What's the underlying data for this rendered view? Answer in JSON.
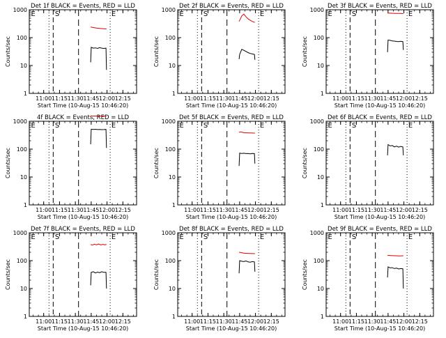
{
  "figure": {
    "xlabel": "Start Time (10-Aug-15 10:46:20)",
    "ylabel": "Counts/sec",
    "x_ticks": [
      "11:00",
      "11:15",
      "11:30",
      "11:45",
      "12:00",
      "12:15"
    ],
    "y_ticks": [
      "1",
      "10",
      "100",
      "1000"
    ],
    "marker_labels": [
      "E",
      "S",
      "E"
    ],
    "colors": {
      "events": "#000000",
      "lld": "#e00000",
      "axes": "#000000"
    }
  },
  "chart_data": [
    {
      "type": "line",
      "title": "Det 1f BLACK = Events, RED = LLD",
      "xlabel": "Start Time (10-Aug-15 10:46:20)",
      "ylabel": "Counts/sec",
      "ylim": [
        1,
        1000
      ],
      "yscale": "log",
      "grid": false,
      "series": [
        {
          "name": "Events",
          "color": "#000000",
          "x": [
            "11:44:30",
            "11:45",
            "11:47",
            "11:49",
            "11:51",
            "11:53",
            "11:55",
            "11:57",
            "11:59",
            "11:59:30"
          ],
          "values": [
            13,
            45,
            42,
            43,
            41,
            44,
            42,
            41,
            42,
            7
          ]
        },
        {
          "name": "LLD",
          "color": "#e00000",
          "x": [
            "11:44:30",
            "11:47",
            "11:50",
            "11:53",
            "11:56",
            "11:59:30"
          ],
          "values": [
            240,
            230,
            220,
            215,
            210,
            205
          ]
        }
      ]
    },
    {
      "type": "line",
      "title": "Det 2f BLACK = Events, RED = LLD",
      "xlabel": "Start Time (10-Aug-15 10:46:20)",
      "ylabel": "Counts/sec",
      "ylim": [
        1,
        1000
      ],
      "yscale": "log",
      "grid": false,
      "series": [
        {
          "name": "Events",
          "color": "#000000",
          "x": [
            "11:44:30",
            "11:45",
            "11:47",
            "11:49",
            "11:51",
            "11:53",
            "11:55",
            "11:57",
            "11:59",
            "11:59:30"
          ],
          "values": [
            17,
            25,
            38,
            35,
            32,
            29,
            27,
            26,
            25,
            16
          ]
        },
        {
          "name": "LLD",
          "color": "#e00000",
          "x": [
            "11:44:30",
            "11:47",
            "11:49",
            "11:51",
            "11:53",
            "11:55",
            "11:57",
            "11:59:30"
          ],
          "values": [
            380,
            600,
            700,
            560,
            470,
            420,
            380,
            350
          ]
        }
      ]
    },
    {
      "type": "line",
      "title": "Det 3f BLACK = Events, RED = LLD",
      "xlabel": "Start Time (10-Aug-15 10:46:20)",
      "ylabel": "Counts/sec",
      "ylim": [
        1,
        1000
      ],
      "yscale": "log",
      "grid": false,
      "series": [
        {
          "name": "Events",
          "color": "#000000",
          "x": [
            "11:44:30",
            "11:45",
            "11:47",
            "11:49",
            "11:51",
            "11:53",
            "11:55",
            "11:57",
            "11:59",
            "11:59:30"
          ],
          "values": [
            30,
            82,
            80,
            76,
            75,
            73,
            72,
            74,
            72,
            36
          ]
        },
        {
          "name": "LLD",
          "color": "#e00000",
          "x": [
            "11:44:30",
            "11:48",
            "11:52",
            "11:56",
            "11:59:30"
          ],
          "values": [
            760,
            750,
            740,
            735,
            730
          ]
        }
      ]
    },
    {
      "type": "line",
      "title": "4f BLACK = Events, RED = LLD",
      "xlabel": "Start Time (10-Aug-15 10:46:20)",
      "ylabel": "Counts/sec",
      "ylim": [
        1,
        1000
      ],
      "yscale": "log",
      "grid": false,
      "series": [
        {
          "name": "Events",
          "color": "#000000",
          "x": [
            "11:44:30",
            "11:45",
            "11:47",
            "11:49",
            "11:51",
            "11:53",
            "11:55",
            "11:57",
            "11:59",
            "11:59:30"
          ],
          "values": [
            150,
            520,
            510,
            515,
            505,
            510,
            500,
            505,
            510,
            110
          ]
        },
        {
          "name": "LLD",
          "color": "#e00000",
          "x": [
            "11:44:30",
            "11:48",
            "11:52",
            "11:56",
            "11:59:30"
          ],
          "values": [
            1550,
            1540,
            1540,
            1530,
            1530
          ]
        }
      ]
    },
    {
      "type": "line",
      "title": "Det 5f BLACK = Events, RED = LLD",
      "xlabel": "Start Time (10-Aug-15 10:46:20)",
      "ylabel": "Counts/sec",
      "ylim": [
        1,
        1000
      ],
      "yscale": "log",
      "grid": false,
      "series": [
        {
          "name": "Events",
          "color": "#000000",
          "x": [
            "11:44:30",
            "11:45",
            "11:47",
            "11:49",
            "11:51",
            "11:53",
            "11:55",
            "11:57",
            "11:59",
            "11:59:30"
          ],
          "values": [
            25,
            72,
            70,
            71,
            69,
            70,
            68,
            70,
            69,
            30
          ]
        },
        {
          "name": "LLD",
          "color": "#e00000",
          "x": [
            "11:44:30",
            "11:46",
            "11:49",
            "11:52",
            "11:55",
            "11:59:30"
          ],
          "values": [
            400,
            420,
            390,
            385,
            380,
            375
          ]
        }
      ]
    },
    {
      "type": "line",
      "title": "Det 6f BLACK = Events, RED = LLD",
      "xlabel": "Start Time (10-Aug-15 10:46:20)",
      "ylabel": "Counts/sec",
      "ylim": [
        1,
        1000
      ],
      "yscale": "log",
      "grid": false,
      "series": [
        {
          "name": "Events",
          "color": "#000000",
          "x": [
            "11:44:30",
            "11:45",
            "11:47",
            "11:49",
            "11:51",
            "11:53",
            "11:55",
            "11:57",
            "11:59",
            "11:59:30"
          ],
          "values": [
            60,
            145,
            130,
            135,
            120,
            128,
            118,
            125,
            120,
            60
          ]
        }
      ]
    },
    {
      "type": "line",
      "title": "Det 7f BLACK = Events, RED = LLD",
      "xlabel": "Start Time (10-Aug-15 10:46:20)",
      "ylabel": "Counts/sec",
      "ylim": [
        1,
        1000
      ],
      "yscale": "log",
      "grid": false,
      "series": [
        {
          "name": "Events",
          "color": "#000000",
          "x": [
            "11:44:30",
            "11:45",
            "11:47",
            "11:49",
            "11:51",
            "11:53",
            "11:55",
            "11:57",
            "11:59",
            "11:59:30"
          ],
          "values": [
            13,
            38,
            40,
            36,
            39,
            37,
            40,
            38,
            38,
            10
          ]
        },
        {
          "name": "LLD",
          "color": "#e00000",
          "x": [
            "11:44:30",
            "11:46",
            "11:48",
            "11:50",
            "11:52",
            "11:54",
            "11:56",
            "11:58",
            "11:59:30"
          ],
          "values": [
            380,
            360,
            390,
            370,
            395,
            365,
            385,
            370,
            380
          ]
        }
      ]
    },
    {
      "type": "line",
      "title": "Det 8f BLACK = Events, RED = LLD",
      "xlabel": "Start Time (10-Aug-15 10:46:20)",
      "ylabel": "Counts/sec",
      "ylim": [
        1,
        1000
      ],
      "yscale": "log",
      "grid": false,
      "series": [
        {
          "name": "Events",
          "color": "#000000",
          "x": [
            "11:44:30",
            "11:45",
            "11:47",
            "11:49",
            "11:51",
            "11:53",
            "11:55",
            "11:57",
            "11:59",
            "11:59:30"
          ],
          "values": [
            35,
            100,
            95,
            92,
            98,
            90,
            88,
            92,
            90,
            40
          ]
        },
        {
          "name": "LLD",
          "color": "#e00000",
          "x": [
            "11:44:30",
            "11:46",
            "11:49",
            "11:52",
            "11:55",
            "11:59:30"
          ],
          "values": [
            200,
            195,
            185,
            182,
            180,
            178
          ]
        }
      ]
    },
    {
      "type": "line",
      "title": "Det 9f BLACK = Events, RED = LLD",
      "xlabel": "Start Time (10-Aug-15 10:46:20)",
      "ylabel": "Counts/sec",
      "ylim": [
        1,
        1000
      ],
      "yscale": "log",
      "grid": false,
      "series": [
        {
          "name": "Events",
          "color": "#000000",
          "x": [
            "11:44:30",
            "11:45",
            "11:47",
            "11:49",
            "11:51",
            "11:53",
            "11:55",
            "11:57",
            "11:59",
            "11:59:30"
          ],
          "values": [
            25,
            60,
            55,
            56,
            52,
            54,
            50,
            52,
            51,
            10
          ]
        },
        {
          "name": "LLD",
          "color": "#e00000",
          "x": [
            "11:44:30",
            "11:48",
            "11:52",
            "11:56",
            "11:59:30"
          ],
          "values": [
            155,
            152,
            150,
            148,
            150
          ]
        }
      ]
    }
  ]
}
